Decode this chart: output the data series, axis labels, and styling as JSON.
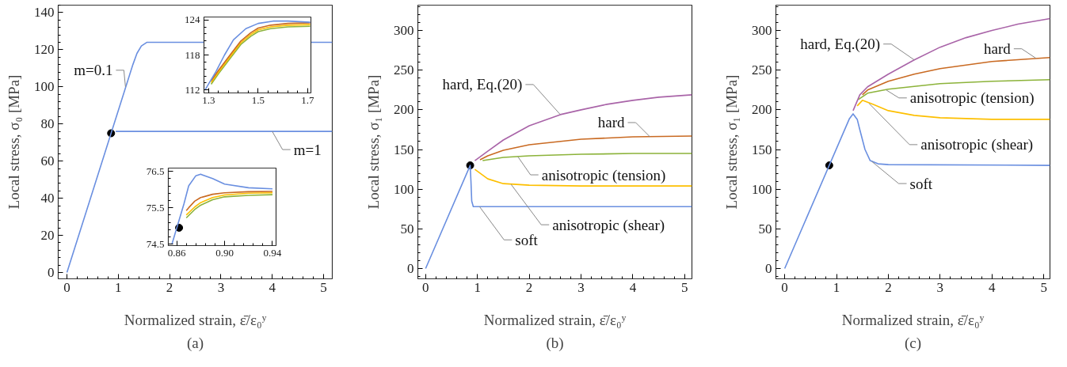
{
  "chart_data": [
    {
      "type": "line",
      "xlabel": "Normalized strain, ε̄/ε₀ʸ",
      "ylabel": "Local stress, σ₀ [MPa]",
      "xlim": [
        -0.17,
        5.17
      ],
      "ylim": [
        -3.4,
        144
      ],
      "xticks": [
        0,
        1,
        2,
        3,
        4,
        5
      ],
      "yticks": [
        0,
        20,
        40,
        60,
        80,
        100,
        120,
        140
      ],
      "annotations": [
        {
          "text": "m=0.1",
          "x": 1.14,
          "y": 100
        },
        {
          "text": "m=1",
          "x": 4.0,
          "y": 76
        },
        "(a)"
      ],
      "series": [
        {
          "type": "scatter",
          "marker": "circle",
          "color": "#000000",
          "x": [
            0.86
          ],
          "values": [
            75
          ]
        },
        {
          "color": "#6a8fe0",
          "x": [
            0.95,
            5.17
          ],
          "values": [
            76,
            76
          ]
        },
        {
          "color": "#6a8fe0",
          "x": [
            0,
            1.285,
            1.364,
            1.45,
            1.56,
            5.17
          ],
          "values": [
            0,
            112,
            118,
            122,
            124,
            124
          ]
        }
      ]
    },
    {
      "type": "line",
      "xlim": [
        1.281,
        1.713
      ],
      "ylim": [
        111.5,
        124.5
      ],
      "xticks": [
        1.3,
        1.5,
        1.7
      ],
      "yticks": [
        112,
        118,
        124
      ],
      "series": [
        {
          "color": "#8cb33a",
          "x": [
            1.31,
            1.34,
            1.39,
            1.43,
            1.47,
            1.5,
            1.55,
            1.62,
            1.71
          ],
          "values": [
            113,
            114.8,
            117.6,
            119.8,
            121.2,
            122,
            122.5,
            122.8,
            122.9
          ]
        },
        {
          "color": "#fdbf00",
          "x": [
            1.31,
            1.34,
            1.39,
            1.43,
            1.47,
            1.5,
            1.55,
            1.62,
            1.71
          ],
          "values": [
            113.3,
            115.1,
            117.9,
            120.1,
            121.5,
            122.3,
            122.8,
            123.1,
            123.2
          ]
        },
        {
          "color": "#c96a22",
          "x": [
            1.31,
            1.34,
            1.39,
            1.43,
            1.47,
            1.5,
            1.55,
            1.62,
            1.71
          ],
          "values": [
            113.6,
            115.4,
            118.2,
            120.4,
            121.8,
            122.6,
            123.1,
            123.4,
            123.5
          ]
        },
        {
          "color": "#6a8fe0",
          "x": [
            1.285,
            1.33,
            1.364,
            1.4,
            1.45,
            1.5,
            1.56,
            1.62,
            1.71
          ],
          "values": [
            112,
            115.2,
            118,
            120.6,
            122.5,
            123.4,
            123.8,
            123.8,
            123.6
          ]
        }
      ]
    },
    {
      "type": "line",
      "xlim": [
        0.853,
        0.943
      ],
      "ylim": [
        74.46,
        76.59
      ],
      "xticks": [
        {
          "value": 0.86,
          "label": "0.86"
        },
        {
          "value": 0.9,
          "label": "0.90"
        },
        {
          "value": 0.94,
          "label": "0.94"
        }
      ],
      "yticks": [
        74.5,
        75.5,
        76.5
      ],
      "series": [
        {
          "type": "scatter",
          "marker": "circle",
          "color": "#000000",
          "x": [
            0.862
          ],
          "values": [
            74.95
          ]
        },
        {
          "color": "#8cb33a",
          "x": [
            0.868,
            0.875,
            0.88,
            0.89,
            0.9,
            0.92,
            0.94
          ],
          "values": [
            75.22,
            75.45,
            75.57,
            75.72,
            75.8,
            75.84,
            75.86
          ]
        },
        {
          "color": "#fdbf00",
          "x": [
            0.868,
            0.875,
            0.88,
            0.89,
            0.9,
            0.92,
            0.94
          ],
          "values": [
            75.3,
            75.52,
            75.64,
            75.78,
            75.85,
            75.9,
            75.91
          ]
        },
        {
          "color": "#c96a22",
          "x": [
            0.868,
            0.87,
            0.875,
            0.88,
            0.89,
            0.9,
            0.92,
            0.94
          ],
          "values": [
            75.42,
            75.5,
            75.68,
            75.78,
            75.87,
            75.91,
            75.94,
            75.95
          ]
        },
        {
          "color": "#6a8fe0",
          "x": [
            0.856,
            0.866,
            0.87,
            0.876,
            0.88,
            0.89,
            0.9,
            0.92,
            0.94
          ],
          "values": [
            74.5,
            75.6,
            76.1,
            76.38,
            76.42,
            76.3,
            76.15,
            76.05,
            76.02
          ]
        }
      ]
    },
    {
      "type": "line",
      "xlabel": "Normalized strain, ε̄/ε₀ʸ",
      "ylabel": "Local stress, σ₁ [MPa]",
      "xlim": [
        -0.15,
        5.14
      ],
      "ylim": [
        -13,
        332
      ],
      "xticks": [
        0,
        1,
        2,
        3,
        4,
        5
      ],
      "yticks": [
        0,
        50,
        100,
        150,
        200,
        250,
        300
      ],
      "annotations": [
        {
          "text": "hard, Eq.(20)",
          "x": 2.6,
          "y": 194
        },
        {
          "text": "hard",
          "x": 4.33,
          "y": 166
        },
        {
          "text": "anisotropic (tension)",
          "x": 1.78,
          "y": 141
        },
        {
          "text": "anisotropic (shear)",
          "x": 1.65,
          "y": 106
        },
        {
          "text": "soft",
          "x": 1.04,
          "y": 78
        },
        "(b)"
      ],
      "series": [
        {
          "type": "scatter",
          "marker": "circle",
          "color": "#000000",
          "x": [
            0.86
          ],
          "values": [
            130
          ]
        },
        {
          "color": "#fdbf00",
          "x": [
            0.95,
            1.2,
            1.5,
            2,
            3,
            5.14
          ],
          "values": [
            125,
            113,
            107,
            105,
            104,
            104
          ]
        },
        {
          "color": "#8cb33a",
          "x": [
            1.1,
            1.5,
            2,
            3,
            4,
            5.14
          ],
          "values": [
            136,
            140,
            142,
            144,
            145,
            145
          ]
        },
        {
          "color": "#c96a22",
          "x": [
            1.05,
            1.2,
            1.5,
            2,
            3,
            4,
            5.14
          ],
          "values": [
            137,
            142,
            149,
            156,
            163,
            166,
            167
          ]
        },
        {
          "color": "#a964a8",
          "x": [
            0.95,
            1.2,
            1.5,
            2,
            2.6,
            3,
            3.5,
            4,
            4.5,
            5.14
          ],
          "values": [
            136,
            148,
            162,
            180,
            194,
            200,
            207,
            212,
            216,
            219
          ]
        },
        {
          "color": "#6a8fe0",
          "x": [
            0,
            0.86,
            0.875,
            0.89,
            0.92,
            1.0,
            5.14
          ],
          "values": [
            0,
            130,
            110,
            85,
            78,
            78,
            78
          ]
        }
      ]
    },
    {
      "type": "line",
      "xlabel": "Normalized strain, ε̄/ε₀ʸ",
      "ylabel": "Local stress, σ₁ [MPa]",
      "xlim": [
        -0.17,
        5.12
      ],
      "ylim": [
        -13,
        332
      ],
      "xticks": [
        0,
        1,
        2,
        3,
        4,
        5
      ],
      "yticks": [
        0,
        50,
        100,
        150,
        200,
        250,
        300
      ],
      "annotations": [
        {
          "text": "hard, Eq.(20)",
          "x": 2.5,
          "y": 263
        },
        {
          "text": "hard",
          "x": 4.85,
          "y": 265
        },
        {
          "text": "anisotropic (tension)",
          "x": 1.96,
          "y": 225
        },
        {
          "text": "anisotropic (shear)",
          "x": 1.63,
          "y": 208
        },
        {
          "text": "soft",
          "x": 1.68,
          "y": 135
        },
        "(c)"
      ],
      "series": [
        {
          "type": "scatter",
          "marker": "circle",
          "color": "#000000",
          "x": [
            0.86
          ],
          "values": [
            130
          ]
        },
        {
          "color": "#fdbf00",
          "x": [
            1.4,
            1.5,
            1.7,
            2,
            2.5,
            3,
            4,
            5.12
          ],
          "values": [
            205,
            212,
            207,
            199,
            193,
            190,
            188,
            188
          ]
        },
        {
          "color": "#8cb33a",
          "x": [
            1.42,
            1.6,
            2,
            3,
            4,
            5.12
          ],
          "values": [
            213,
            221,
            226,
            233,
            236,
            238
          ]
        },
        {
          "color": "#c96a22",
          "x": [
            1.5,
            1.6,
            2,
            2.5,
            3,
            4,
            5.12
          ],
          "values": [
            219,
            225,
            236,
            245,
            252,
            261,
            266
          ]
        },
        {
          "color": "#a964a8",
          "x": [
            1.32,
            1.45,
            1.6,
            2,
            2.5,
            3,
            3.5,
            4,
            4.5,
            5.12
          ],
          "values": [
            199,
            219,
            229,
            245,
            263,
            279,
            291,
            300,
            308,
            315
          ]
        },
        {
          "color": "#6a8fe0",
          "x": [
            0,
            1.25,
            1.32,
            1.4,
            1.45,
            1.55,
            1.65,
            1.8,
            2,
            5.12
          ],
          "values": [
            0,
            189,
            195,
            188,
            175,
            150,
            136,
            132,
            131,
            130
          ]
        }
      ]
    }
  ]
}
